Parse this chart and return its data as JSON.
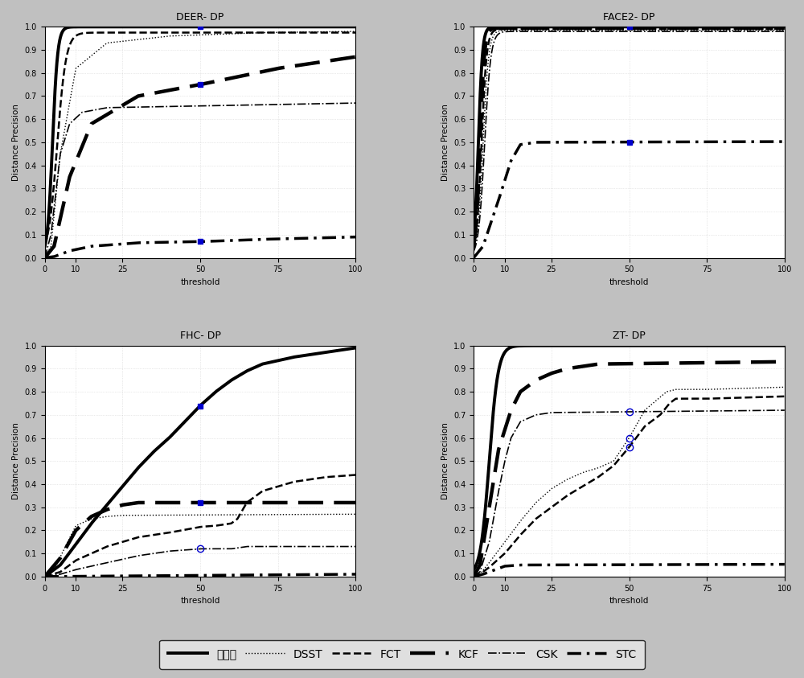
{
  "titles": [
    "DEER- DP",
    "FACE2- DP",
    "FHC- DP",
    "ZT- DP"
  ],
  "xlabel": "threshold",
  "ylabel": "Distance Precision",
  "xlim": [
    0,
    100
  ],
  "ylim": [
    0,
    1
  ],
  "background_color": "#c0c0c0",
  "plot_bg_color": "#ffffff",
  "legend_labels": [
    "本发明",
    "DSST",
    "FCT",
    "KCF",
    "CSK",
    "STC"
  ],
  "marker_color": "#0000cd",
  "title_fontsize": 9,
  "axis_fontsize": 7.5,
  "tick_fontsize": 7,
  "legend_fontsize": 10
}
